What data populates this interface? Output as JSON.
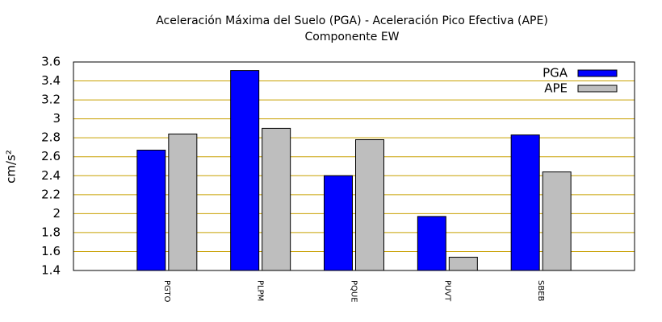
{
  "chart_data": {
    "type": "bar",
    "title": "Aceleración Máxima del Suelo (PGA) -  Aceleración Pico Efectiva (APE)",
    "subtitle": "Componente EW",
    "y_label": "cm/s²",
    "categories": [
      "PGTO",
      "PLPM",
      "PQUE",
      "PUVT",
      "SBEB"
    ],
    "series": [
      {
        "name": "PGA",
        "color": "#0000ff",
        "values": [
          2.67,
          3.51,
          2.4,
          1.97,
          2.83
        ]
      },
      {
        "name": "APE",
        "color": "#bebebe",
        "values": [
          2.84,
          2.9,
          2.78,
          1.54,
          2.44
        ]
      }
    ],
    "ylim": [
      1.4,
      3.6
    ],
    "yticks": [
      1.4,
      1.6,
      1.8,
      2,
      2.2,
      2.4,
      2.6,
      2.8,
      3,
      3.2,
      3.4,
      3.6
    ],
    "grid": true,
    "grid_color": "#c8a000",
    "legend": "top-right"
  }
}
